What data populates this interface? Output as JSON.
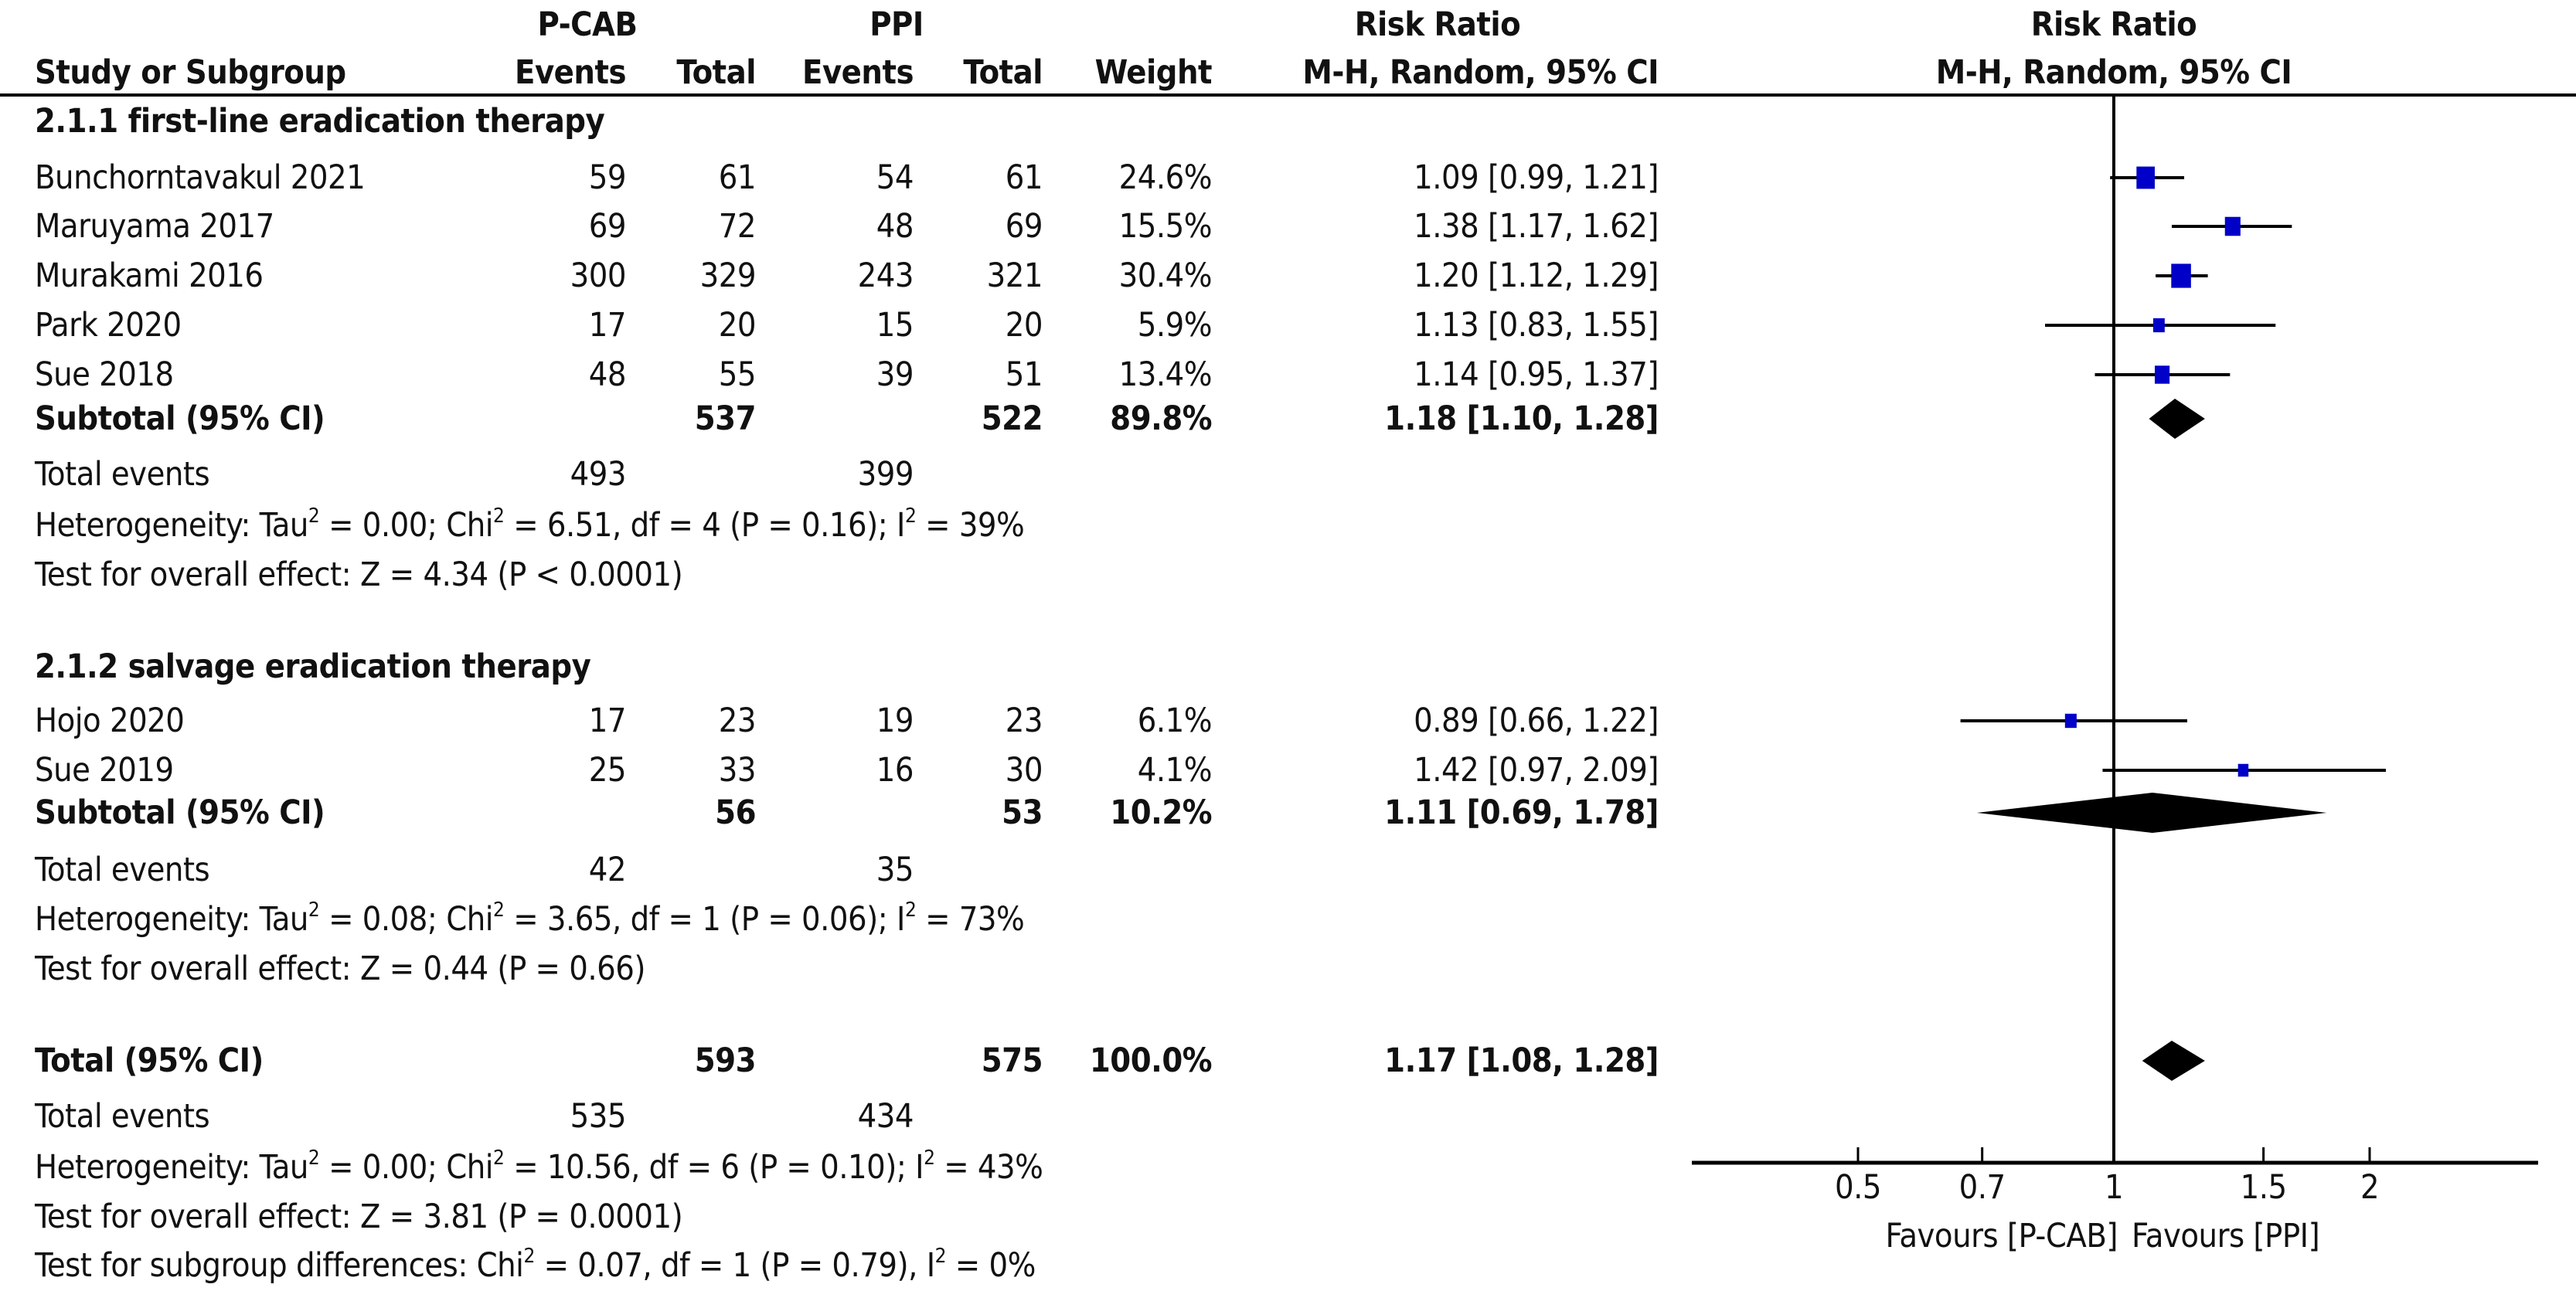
{
  "header": {
    "group1": "P-CAB",
    "group2": "PPI",
    "rr_col_title": "Risk Ratio",
    "rr_col_method": "M-H, Random, 95% CI",
    "plot_title": "Risk Ratio",
    "plot_method": "M-H, Random, 95% CI",
    "study_col": "Study or Subgroup",
    "events": "Events",
    "total": "Total",
    "weight": "Weight"
  },
  "subgroups": [
    {
      "title": "2.1.1 first-line eradication therapy",
      "studies": [
        {
          "name": "Bunchorntavakul 2021",
          "e1": "59",
          "n1": "61",
          "e2": "54",
          "n2": "61",
          "weight": "24.6%",
          "ci": "1.09 [0.99, 1.21]"
        },
        {
          "name": "Maruyama 2017",
          "e1": "69",
          "n1": "72",
          "e2": "48",
          "n2": "69",
          "weight": "15.5%",
          "ci": "1.38 [1.17, 1.62]"
        },
        {
          "name": "Murakami 2016",
          "e1": "300",
          "n1": "329",
          "e2": "243",
          "n2": "321",
          "weight": "30.4%",
          "ci": "1.20 [1.12, 1.29]"
        },
        {
          "name": "Park 2020",
          "e1": "17",
          "n1": "20",
          "e2": "15",
          "n2": "20",
          "weight": "5.9%",
          "ci": "1.13 [0.83, 1.55]"
        },
        {
          "name": "Sue 2018",
          "e1": "48",
          "n1": "55",
          "e2": "39",
          "n2": "51",
          "weight": "13.4%",
          "ci": "1.14 [0.95, 1.37]"
        }
      ],
      "subtotal": {
        "label": "Subtotal (95% CI)",
        "n1": "537",
        "n2": "522",
        "weight": "89.8%",
        "ci": "1.18 [1.10, 1.28]"
      },
      "total_events": {
        "label": "Total events",
        "e1": "493",
        "e2": "399"
      },
      "heterogeneity": {
        "prefix": "Heterogeneity: Tau",
        "tau": " = 0.00; Chi",
        "chi": " = 6.51, df = 4 (P = 0.16); I",
        "i2": " = 39%"
      },
      "overall": "Test for overall effect: Z = 4.34 (P < 0.0001)"
    },
    {
      "title": "2.1.2 salvage eradication therapy",
      "studies": [
        {
          "name": "Hojo 2020",
          "e1": "17",
          "n1": "23",
          "e2": "19",
          "n2": "23",
          "weight": "6.1%",
          "ci": "0.89 [0.66, 1.22]"
        },
        {
          "name": "Sue 2019",
          "e1": "25",
          "n1": "33",
          "e2": "16",
          "n2": "30",
          "weight": "4.1%",
          "ci": "1.42 [0.97, 2.09]"
        }
      ],
      "subtotal": {
        "label": "Subtotal (95% CI)",
        "n1": "56",
        "n2": "53",
        "weight": "10.2%",
        "ci": "1.11 [0.69, 1.78]"
      },
      "total_events": {
        "label": "Total events",
        "e1": "42",
        "e2": "35"
      },
      "heterogeneity": {
        "prefix": "Heterogeneity: Tau",
        "tau": " = 0.08; Chi",
        "chi": " = 3.65, df = 1 (P = 0.06); I",
        "i2": " = 73%"
      },
      "overall": "Test for overall effect: Z = 0.44 (P = 0.66)"
    }
  ],
  "total": {
    "label": "Total (95% CI)",
    "n1": "593",
    "n2": "575",
    "weight": "100.0%",
    "ci": "1.17 [1.08, 1.28]",
    "total_events": {
      "label": "Total events",
      "e1": "535",
      "e2": "434"
    },
    "heterogeneity": {
      "prefix": "Heterogeneity: Tau",
      "tau": " = 0.00; Chi",
      "chi": " = 10.56, df = 6 (P = 0.10); I",
      "i2": " = 43%"
    },
    "overall": "Test for overall effect: Z = 3.81 (P = 0.0001)",
    "subgroup_diff": {
      "prefix": "Test for subgroup differences: Chi",
      "chi": " = 0.07, df = 1 (P = 0.79), I",
      "i2": " = 0%"
    }
  },
  "axis": {
    "ticks": [
      "0.5",
      "0.7",
      "1",
      "1.5",
      "2"
    ],
    "favours_left": "Favours [P-CAB]",
    "favours_right": "Favours [PPI]"
  },
  "colors": {
    "square": "#0000c8",
    "diamond": "#000000",
    "line": "#000000"
  },
  "chart_data": {
    "type": "forest",
    "title": "Risk Ratio (M-H, Random, 95% CI)",
    "xlabel": "Favours [P-CAB]  |  Favours [PPI]",
    "xscale": "log",
    "xlim": [
      0.4,
      3.0
    ],
    "xticks": [
      0.5,
      0.7,
      1,
      1.5,
      2
    ],
    "studies": [
      {
        "subgroup": "2.1.1 first-line eradication therapy",
        "name": "Bunchorntavakul 2021",
        "rr": 1.09,
        "lo": 0.99,
        "hi": 1.21,
        "weight": 24.6
      },
      {
        "subgroup": "2.1.1 first-line eradication therapy",
        "name": "Maruyama 2017",
        "rr": 1.38,
        "lo": 1.17,
        "hi": 1.62,
        "weight": 15.5
      },
      {
        "subgroup": "2.1.1 first-line eradication therapy",
        "name": "Murakami 2016",
        "rr": 1.2,
        "lo": 1.12,
        "hi": 1.29,
        "weight": 30.4
      },
      {
        "subgroup": "2.1.1 first-line eradication therapy",
        "name": "Park 2020",
        "rr": 1.13,
        "lo": 0.83,
        "hi": 1.55,
        "weight": 5.9
      },
      {
        "subgroup": "2.1.1 first-line eradication therapy",
        "name": "Sue 2018",
        "rr": 1.14,
        "lo": 0.95,
        "hi": 1.37,
        "weight": 13.4
      },
      {
        "subgroup": "2.1.2 salvage eradication therapy",
        "name": "Hojo 2020",
        "rr": 0.89,
        "lo": 0.66,
        "hi": 1.22,
        "weight": 6.1
      },
      {
        "subgroup": "2.1.2 salvage eradication therapy",
        "name": "Sue 2019",
        "rr": 1.42,
        "lo": 0.97,
        "hi": 2.09,
        "weight": 4.1
      }
    ],
    "pooled": [
      {
        "name": "Subtotal 2.1.1",
        "rr": 1.18,
        "lo": 1.1,
        "hi": 1.28,
        "weight": 89.8
      },
      {
        "name": "Subtotal 2.1.2",
        "rr": 1.11,
        "lo": 0.69,
        "hi": 1.78,
        "weight": 10.2
      },
      {
        "name": "Total",
        "rr": 1.17,
        "lo": 1.08,
        "hi": 1.28,
        "weight": 100.0
      }
    ]
  }
}
